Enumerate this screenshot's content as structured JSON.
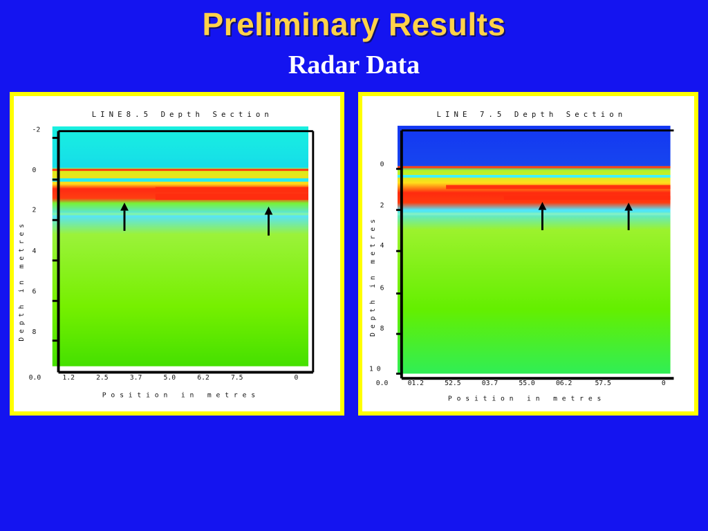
{
  "slide": {
    "title": "Preliminary Results",
    "subtitle": "Radar Data"
  },
  "colors": {
    "background": "#1414f0",
    "title": "#ffd24a",
    "frame": "#ffff00"
  },
  "panels": [
    {
      "title": "LINE8.5  Depth  Section",
      "ylabel": "Depth in metres",
      "xlabel": "Position in metres",
      "ytick_labels": [
        "-2",
        "0",
        "2",
        "4",
        "6",
        "8"
      ],
      "xtick_labels": [
        "0.0",
        "1.2",
        "2.5",
        "3.7",
        "5.0",
        "6.2",
        "7.5",
        "0"
      ],
      "top_color": "#00e6e6",
      "arrow_count": 2
    },
    {
      "title": "LINE  7.5  Depth  Section",
      "ylabel": "Depth in metres",
      "xlabel": "Position in metres",
      "ytick_labels": [
        "0",
        "2",
        "4",
        "6",
        "8",
        "10"
      ],
      "xtick_labels": [
        "0.0",
        "01.2",
        "52.5",
        "03.7",
        "55.0",
        "06.2",
        "57.5",
        "0"
      ],
      "top_color": "#1e3cf0",
      "arrow_count": 2
    }
  ]
}
